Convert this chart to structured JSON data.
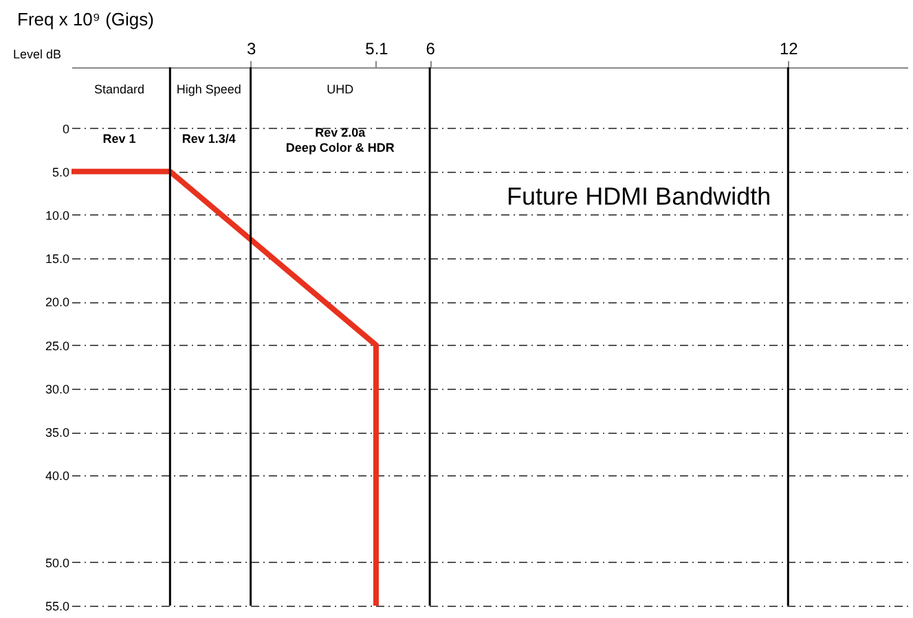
{
  "chart_data": {
    "type": "line",
    "xlabel": "Freq x 10⁹ (Gigs)",
    "ylabel": "Level dB",
    "x": [
      0,
      1.65,
      5.1,
      5.1
    ],
    "series": [
      {
        "color": "#e8321e",
        "values": [
          5,
          5,
          25,
          55
        ]
      }
    ],
    "xlim": [
      0,
      14
    ],
    "xticks": [
      3,
      5.1,
      6,
      12
    ],
    "ylim": [
      55,
      -7
    ],
    "yticks": [
      {
        "value": 0,
        "label": "0"
      },
      {
        "value": 5,
        "label": "5.0"
      },
      {
        "value": 10,
        "label": "10.0"
      },
      {
        "value": 15,
        "label": "15.0"
      },
      {
        "value": 20,
        "label": "20.0"
      },
      {
        "value": 25,
        "label": "25.0"
      },
      {
        "value": 30,
        "label": "30.0"
      },
      {
        "value": 35,
        "label": "35.0"
      },
      {
        "value": 40,
        "label": "40.0"
      },
      {
        "value": 50,
        "label": "50.0"
      },
      {
        "value": 55,
        "label": "55.0"
      }
    ],
    "grid": "y",
    "marker": "none",
    "line_style": "solid",
    "legend": false,
    "ref_lines": [
      {
        "axis": "x",
        "value": 1.65,
        "color": "#000000"
      },
      {
        "axis": "x",
        "value": 3,
        "color": "#000000"
      },
      {
        "axis": "x",
        "value": 6,
        "color": "#000000"
      },
      {
        "axis": "x",
        "value": 12,
        "color": "#000000"
      }
    ],
    "annotations": [
      "Standard",
      "High Speed",
      "UHD",
      "Rev 1",
      "Rev 1.3/4",
      "Rev 2.0a\nDeep Color & HDR",
      "Future HDMI Bandwidth"
    ]
  }
}
